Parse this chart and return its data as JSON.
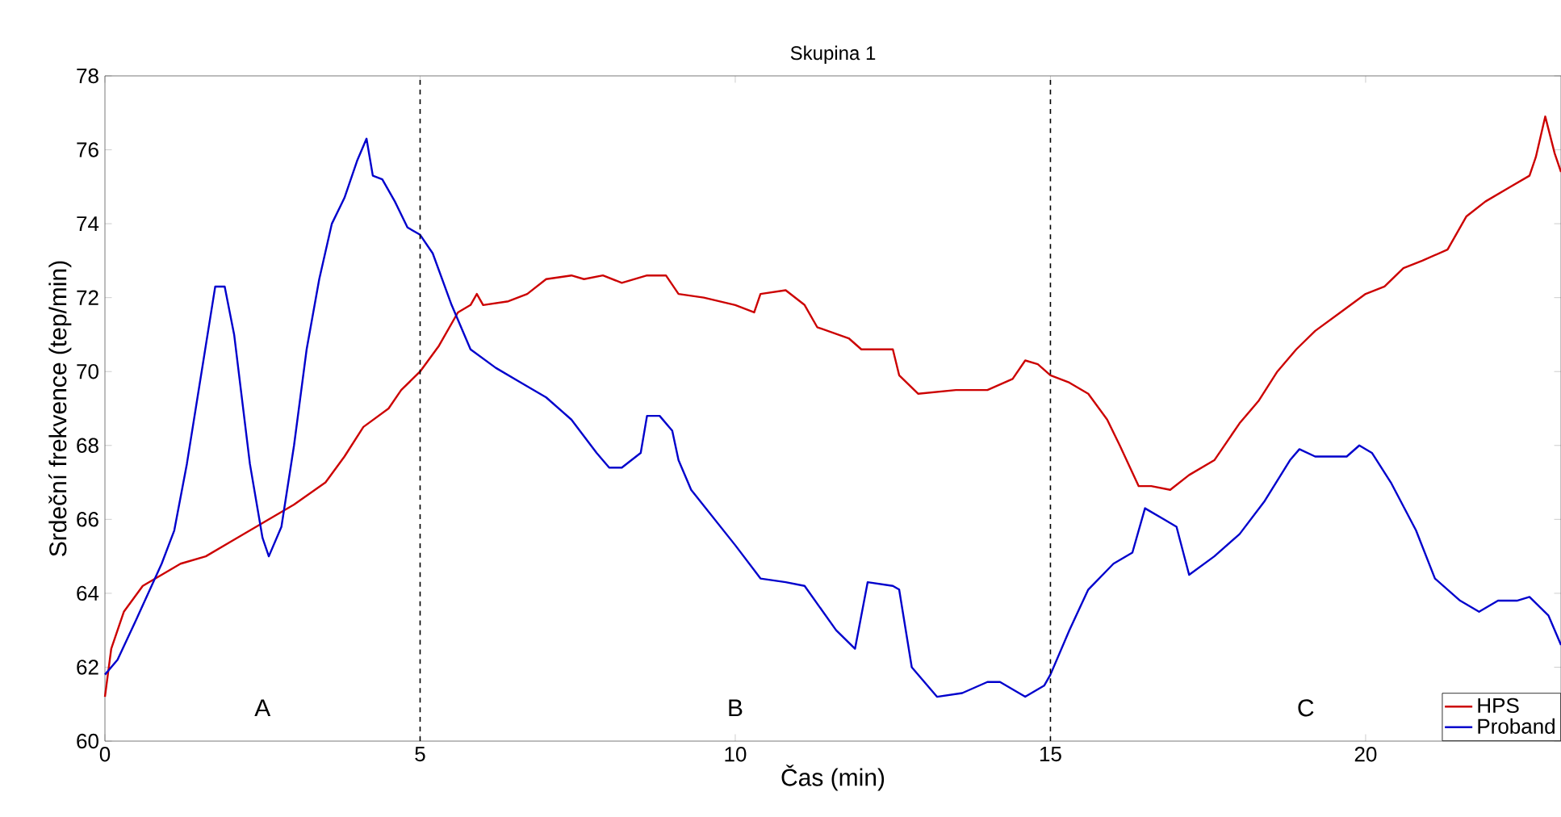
{
  "chart_data": {
    "type": "line",
    "title": "Skupina 1",
    "xlabel": "Čas (min)",
    "ylabel": "Srdeční frekvence (tep/min)",
    "xlim": [
      0,
      23.1
    ],
    "ylim": [
      60,
      78
    ],
    "xticks": [
      0,
      5,
      10,
      15,
      20
    ],
    "yticks": [
      60,
      62,
      64,
      66,
      68,
      70,
      72,
      74,
      76,
      78
    ],
    "grid": false,
    "legend": "bottom right",
    "line_style": "solid",
    "marker": "none",
    "ref_lines": [
      {
        "axis": "x",
        "value": 5,
        "color": "#000000",
        "line_style": "dashed"
      },
      {
        "axis": "x",
        "value": 15,
        "color": "#000000",
        "line_style": "dashed"
      }
    ],
    "annotations": [
      "A",
      "B",
      "C"
    ],
    "series": [
      {
        "name": "HPS",
        "color": "#cc0000",
        "x": [
          0,
          0.1,
          0.3,
          0.6,
          0.9,
          1.2,
          1.6,
          2.0,
          2.5,
          3.0,
          3.5,
          3.8,
          4.1,
          4.5,
          4.7,
          5.0,
          5.3,
          5.6,
          5.8,
          5.9,
          6.0,
          6.4,
          6.7,
          7.0,
          7.4,
          7.6,
          7.9,
          8.2,
          8.6,
          8.9,
          9.1,
          9.5,
          10.0,
          10.3,
          10.4,
          10.8,
          11.1,
          11.3,
          11.8,
          12.0,
          12.5,
          12.6,
          12.9,
          13.5,
          14.0,
          14.4,
          14.6,
          14.8,
          15.0,
          15.3,
          15.6,
          15.9,
          16.1,
          16.4,
          16.6,
          16.9,
          17.2,
          17.6,
          18.0,
          18.3,
          18.6,
          18.9,
          19.2,
          19.6,
          20.0,
          20.3,
          20.6,
          20.9,
          21.3,
          21.6,
          21.9,
          22.3,
          22.6,
          22.7,
          22.85,
          23.0,
          23.1
        ],
        "values": [
          61.2,
          62.5,
          63.5,
          64.2,
          64.5,
          64.8,
          65.0,
          65.4,
          65.9,
          66.4,
          67.0,
          67.7,
          68.5,
          69.0,
          69.5,
          70.0,
          70.7,
          71.6,
          71.8,
          72.1,
          71.8,
          71.9,
          72.1,
          72.5,
          72.6,
          72.5,
          72.6,
          72.4,
          72.6,
          72.6,
          72.1,
          72.0,
          71.8,
          71.6,
          72.1,
          72.2,
          71.8,
          71.2,
          70.9,
          70.6,
          70.6,
          69.9,
          69.4,
          69.5,
          69.5,
          69.8,
          70.3,
          70.2,
          69.9,
          69.7,
          69.4,
          68.7,
          68.0,
          66.9,
          66.9,
          66.8,
          67.2,
          67.6,
          68.6,
          69.2,
          70.0,
          70.6,
          71.1,
          71.6,
          72.1,
          72.3,
          72.8,
          73.0,
          73.3,
          74.2,
          74.6,
          75.0,
          75.3,
          75.8,
          76.9,
          75.9,
          75.4
        ]
      },
      {
        "name": "Proband",
        "color": "#0000cc",
        "x": [
          0,
          0.2,
          0.5,
          0.9,
          1.1,
          1.3,
          1.6,
          1.75,
          1.9,
          2.05,
          2.3,
          2.5,
          2.6,
          2.8,
          3.0,
          3.2,
          3.4,
          3.6,
          3.8,
          4.0,
          4.15,
          4.25,
          4.4,
          4.6,
          4.8,
          5.0,
          5.2,
          5.5,
          5.8,
          6.2,
          6.6,
          7.0,
          7.4,
          7.8,
          8.0,
          8.2,
          8.5,
          8.6,
          8.8,
          9.0,
          9.1,
          9.3,
          10.0,
          10.4,
          10.8,
          11.1,
          11.6,
          11.9,
          12.1,
          12.5,
          12.6,
          12.8,
          13.2,
          13.6,
          14.0,
          14.2,
          14.6,
          14.9,
          15.0,
          15.3,
          15.6,
          16.0,
          16.3,
          16.5,
          16.8,
          17.0,
          17.2,
          17.6,
          18.0,
          18.4,
          18.8,
          18.95,
          19.2,
          19.7,
          19.9,
          20.1,
          20.4,
          20.8,
          21.1,
          21.5,
          21.8,
          22.1,
          22.4,
          22.6,
          22.9,
          23.1
        ],
        "values": [
          61.8,
          62.2,
          63.3,
          64.8,
          65.7,
          67.5,
          70.7,
          72.3,
          72.3,
          71.0,
          67.5,
          65.5,
          65.0,
          65.8,
          68.0,
          70.6,
          72.5,
          74.0,
          74.7,
          75.7,
          76.3,
          75.3,
          75.2,
          74.6,
          73.9,
          73.7,
          73.2,
          71.8,
          70.6,
          70.1,
          69.7,
          69.3,
          68.7,
          67.8,
          67.4,
          67.4,
          67.8,
          68.8,
          68.8,
          68.4,
          67.6,
          66.8,
          65.3,
          64.4,
          64.3,
          64.2,
          63.0,
          62.5,
          64.3,
          64.2,
          64.1,
          62.0,
          61.2,
          61.3,
          61.6,
          61.6,
          61.2,
          61.5,
          61.8,
          63.0,
          64.1,
          64.8,
          65.1,
          66.3,
          66.0,
          65.8,
          64.5,
          65.0,
          65.6,
          66.5,
          67.6,
          67.9,
          67.7,
          67.7,
          68.0,
          67.8,
          67.0,
          65.7,
          64.4,
          63.8,
          63.5,
          63.8,
          63.8,
          63.9,
          63.4,
          62.6
        ]
      }
    ]
  }
}
